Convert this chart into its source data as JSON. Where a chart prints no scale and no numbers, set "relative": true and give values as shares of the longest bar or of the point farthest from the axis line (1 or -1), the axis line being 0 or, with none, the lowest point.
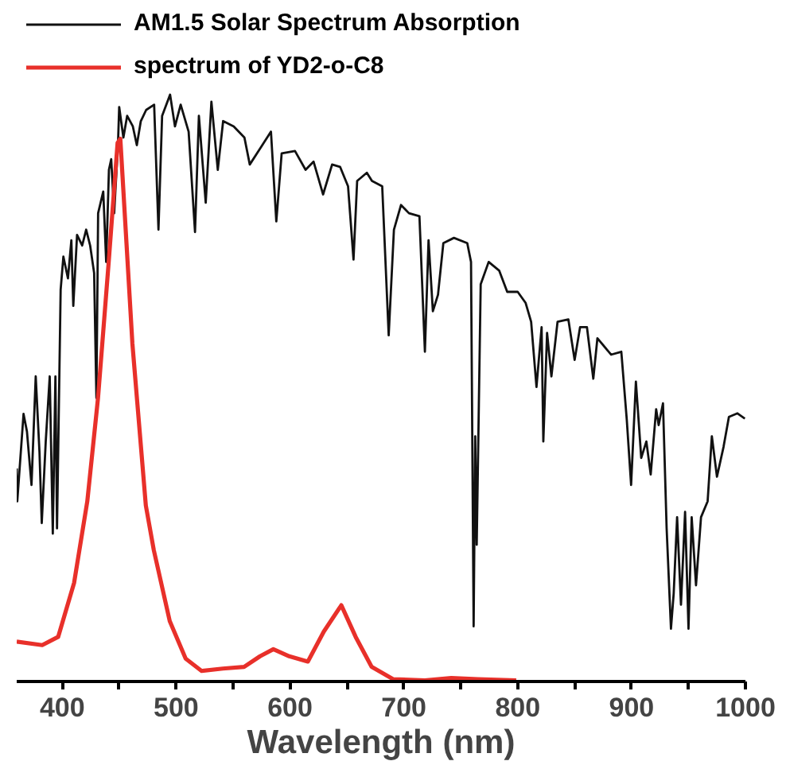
{
  "chart_data": {
    "type": "line",
    "relative": true,
    "xlabel": "Wavelength (nm)",
    "xlim": [
      360,
      1000
    ],
    "xticks": [
      400,
      {
        "value": 450,
        "label": null
      },
      500,
      {
        "value": 550,
        "label": null
      },
      600,
      {
        "value": 650,
        "label": null
      },
      700,
      {
        "value": 750,
        "label": null
      },
      800,
      {
        "value": 850,
        "label": null
      },
      900,
      {
        "value": 950,
        "label": null
      },
      1000
    ],
    "legend": "top left",
    "grid": false,
    "marker": "none",
    "line_style": "solid",
    "series": [
      {
        "name": "AM1.5 Solar Spectrum Absorption",
        "color": "#111111",
        "x": [
          360,
          360.5,
          366,
          369,
          373,
          376.7,
          380,
          382,
          385.5,
          389,
          391.7,
          394,
          395.4,
          398.6,
          401,
          405,
          408,
          409.7,
          413,
          417.5,
          421,
          424.5,
          428,
          430,
          431.5,
          436,
          438.6,
          441,
          443,
          445.6,
          449,
          450,
          453.7,
          457,
          462,
          465.5,
          469,
          473.7,
          480.7,
          484.5,
          487.7,
          494.7,
          499,
          504,
          511,
          516.6,
          520,
          526,
          531,
          536.6,
          541.3,
          550.6,
          560,
          564.7,
          574,
          583.3,
          588,
          592.7,
          604.4,
          613.7,
          620.7,
          629.1,
          637,
          644,
          651,
          655.8,
          659,
          667.5,
          672,
          681,
          686.7,
          691.3,
          697.5,
          704.5,
          713.7,
          718.5,
          721.7,
          725.5,
          730,
          734.7,
          744,
          755.7,
          759,
          761.3,
          762.7,
          764,
          767.5,
          774.5,
          783.8,
          790.8,
          800,
          807,
          811.8,
          816.5,
          821,
          822.5,
          825.8,
          829.6,
          835,
          844.5,
          850,
          854.8,
          860.8,
          866.4,
          870,
          882,
          891,
          895.8,
          899.6,
          903.8,
          908.5,
          913,
          916.8,
          921.6,
          923.8,
          927.6,
          930.8,
          934.6,
          937,
          940,
          943.4,
          947,
          950,
          952.8,
          956.6,
          961,
          966.8,
          970.5,
          975,
          980.8,
          985.5,
          993,
          999.5
        ],
        "values": [
          0.363,
          0.307,
          0.456,
          0.426,
          0.335,
          0.52,
          0.391,
          0.27,
          0.409,
          0.52,
          0.252,
          0.52,
          0.261,
          0.668,
          0.724,
          0.687,
          0.752,
          0.64,
          0.761,
          0.743,
          0.77,
          0.743,
          0.696,
          0.483,
          0.798,
          0.835,
          0.715,
          0.872,
          0.89,
          0.798,
          0.918,
          0.979,
          0.927,
          0.964,
          0.946,
          0.914,
          0.955,
          0.974,
          0.983,
          0.77,
          0.964,
          1.0,
          0.946,
          0.983,
          0.937,
          0.766,
          0.964,
          0.816,
          0.988,
          0.872,
          0.955,
          0.946,
          0.927,
          0.881,
          0.909,
          0.937,
          0.784,
          0.9,
          0.904,
          0.872,
          0.886,
          0.83,
          0.881,
          0.877,
          0.844,
          0.719,
          0.853,
          0.867,
          0.853,
          0.844,
          0.59,
          0.77,
          0.812,
          0.798,
          0.793,
          0.562,
          0.752,
          0.631,
          0.659,
          0.747,
          0.756,
          0.747,
          0.715,
          0.094,
          0.418,
          0.233,
          0.677,
          0.715,
          0.7,
          0.664,
          0.664,
          0.645,
          0.613,
          0.502,
          0.604,
          0.409,
          0.594,
          0.52,
          0.613,
          0.617,
          0.548,
          0.604,
          0.604,
          0.516,
          0.585,
          0.557,
          0.562,
          0.446,
          0.335,
          0.511,
          0.381,
          0.409,
          0.353,
          0.464,
          0.437,
          0.474,
          0.261,
          0.09,
          0.15,
          0.28,
          0.131,
          0.289,
          0.09,
          0.28,
          0.164,
          0.28,
          0.307,
          0.418,
          0.349,
          0.4,
          0.451,
          0.457,
          0.448
        ]
      },
      {
        "name": "spectrum of YD2-o-C8",
        "color": "#e8302a",
        "x": [
          360,
          382.4,
          396.4,
          410.4,
          422,
          431.4,
          440.8,
          448.6,
          451,
          461.6,
          473.4,
          480.4,
          494.4,
          508.4,
          522.4,
          541,
          559.7,
          573.7,
          585.4,
          599.4,
          615.7,
          629.7,
          645.1,
          657.7,
          671.7,
          690.5,
          718.5,
          741.7,
          765,
          798.7
        ],
        "values": [
          0.068,
          0.062,
          0.076,
          0.168,
          0.307,
          0.483,
          0.715,
          0.918,
          0.925,
          0.576,
          0.3,
          0.224,
          0.103,
          0.039,
          0.018,
          0.022,
          0.025,
          0.043,
          0.055,
          0.043,
          0.034,
          0.085,
          0.13,
          0.076,
          0.025,
          0.004,
          0.002,
          0.006,
          0.004,
          0.002
        ]
      }
    ]
  }
}
